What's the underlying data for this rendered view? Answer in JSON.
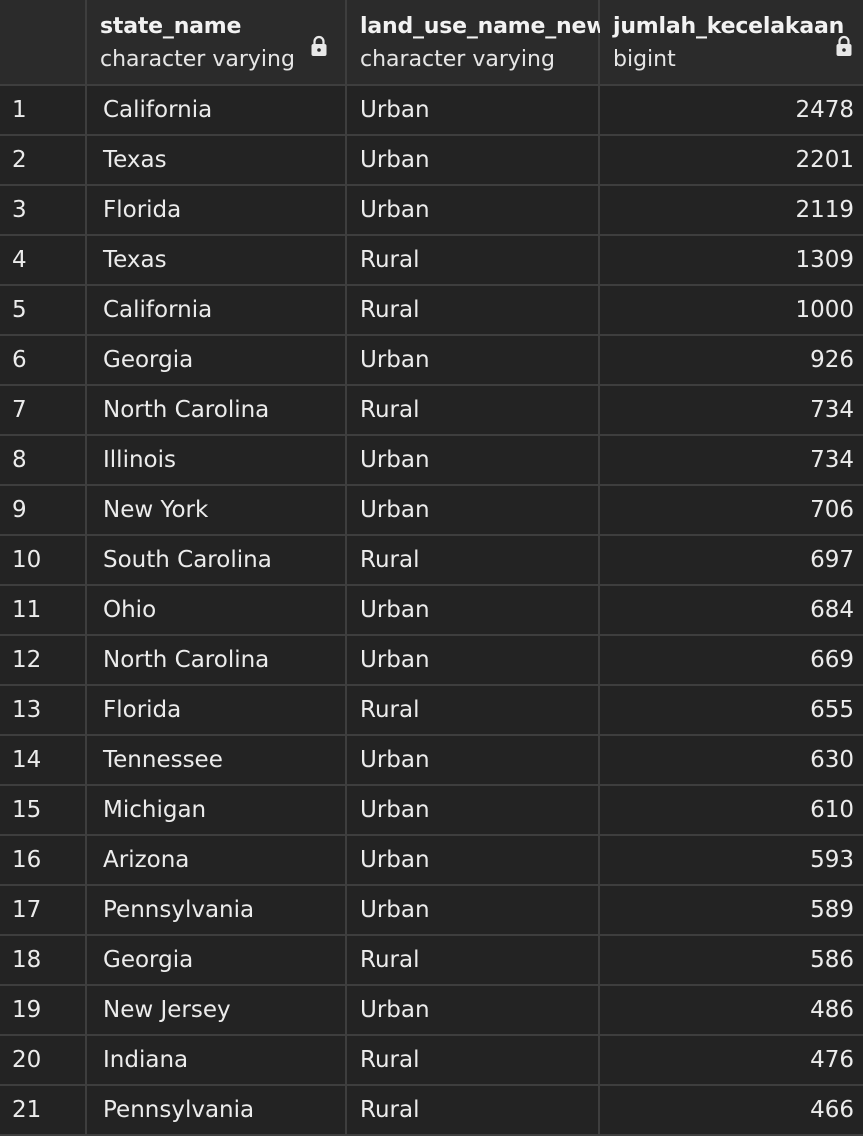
{
  "columns": [
    {
      "name": "state_name",
      "type": "character varying",
      "locked": true
    },
    {
      "name": "land_use_name_new",
      "type": "character varying",
      "locked": false
    },
    {
      "name": "jumlah_kecelakaan",
      "type": "bigint",
      "locked": true
    }
  ],
  "rows": [
    {
      "index": "1",
      "state_name": "California",
      "land_use": "Urban",
      "count": "2478"
    },
    {
      "index": "2",
      "state_name": "Texas",
      "land_use": "Urban",
      "count": "2201"
    },
    {
      "index": "3",
      "state_name": "Florida",
      "land_use": "Urban",
      "count": "2119"
    },
    {
      "index": "4",
      "state_name": "Texas",
      "land_use": "Rural",
      "count": "1309"
    },
    {
      "index": "5",
      "state_name": "California",
      "land_use": "Rural",
      "count": "1000"
    },
    {
      "index": "6",
      "state_name": "Georgia",
      "land_use": "Urban",
      "count": "926"
    },
    {
      "index": "7",
      "state_name": "North Carolina",
      "land_use": "Rural",
      "count": "734"
    },
    {
      "index": "8",
      "state_name": "Illinois",
      "land_use": "Urban",
      "count": "734"
    },
    {
      "index": "9",
      "state_name": "New York",
      "land_use": "Urban",
      "count": "706"
    },
    {
      "index": "10",
      "state_name": "South Carolina",
      "land_use": "Rural",
      "count": "697"
    },
    {
      "index": "11",
      "state_name": "Ohio",
      "land_use": "Urban",
      "count": "684"
    },
    {
      "index": "12",
      "state_name": "North Carolina",
      "land_use": "Urban",
      "count": "669"
    },
    {
      "index": "13",
      "state_name": "Florida",
      "land_use": "Rural",
      "count": "655"
    },
    {
      "index": "14",
      "state_name": "Tennessee",
      "land_use": "Urban",
      "count": "630"
    },
    {
      "index": "15",
      "state_name": "Michigan",
      "land_use": "Urban",
      "count": "610"
    },
    {
      "index": "16",
      "state_name": "Arizona",
      "land_use": "Urban",
      "count": "593"
    },
    {
      "index": "17",
      "state_name": "Pennsylvania",
      "land_use": "Urban",
      "count": "589"
    },
    {
      "index": "18",
      "state_name": "Georgia",
      "land_use": "Rural",
      "count": "586"
    },
    {
      "index": "19",
      "state_name": "New Jersey",
      "land_use": "Urban",
      "count": "486"
    },
    {
      "index": "20",
      "state_name": "Indiana",
      "land_use": "Rural",
      "count": "476"
    },
    {
      "index": "21",
      "state_name": "Pennsylvania",
      "land_use": "Rural",
      "count": "466"
    }
  ],
  "colors": {
    "background": "#232323",
    "header_background": "#2b2b2b",
    "grid_line": "#3e3e3e",
    "text": "#ececec"
  },
  "icons": {
    "column_lock": "lock-icon"
  }
}
